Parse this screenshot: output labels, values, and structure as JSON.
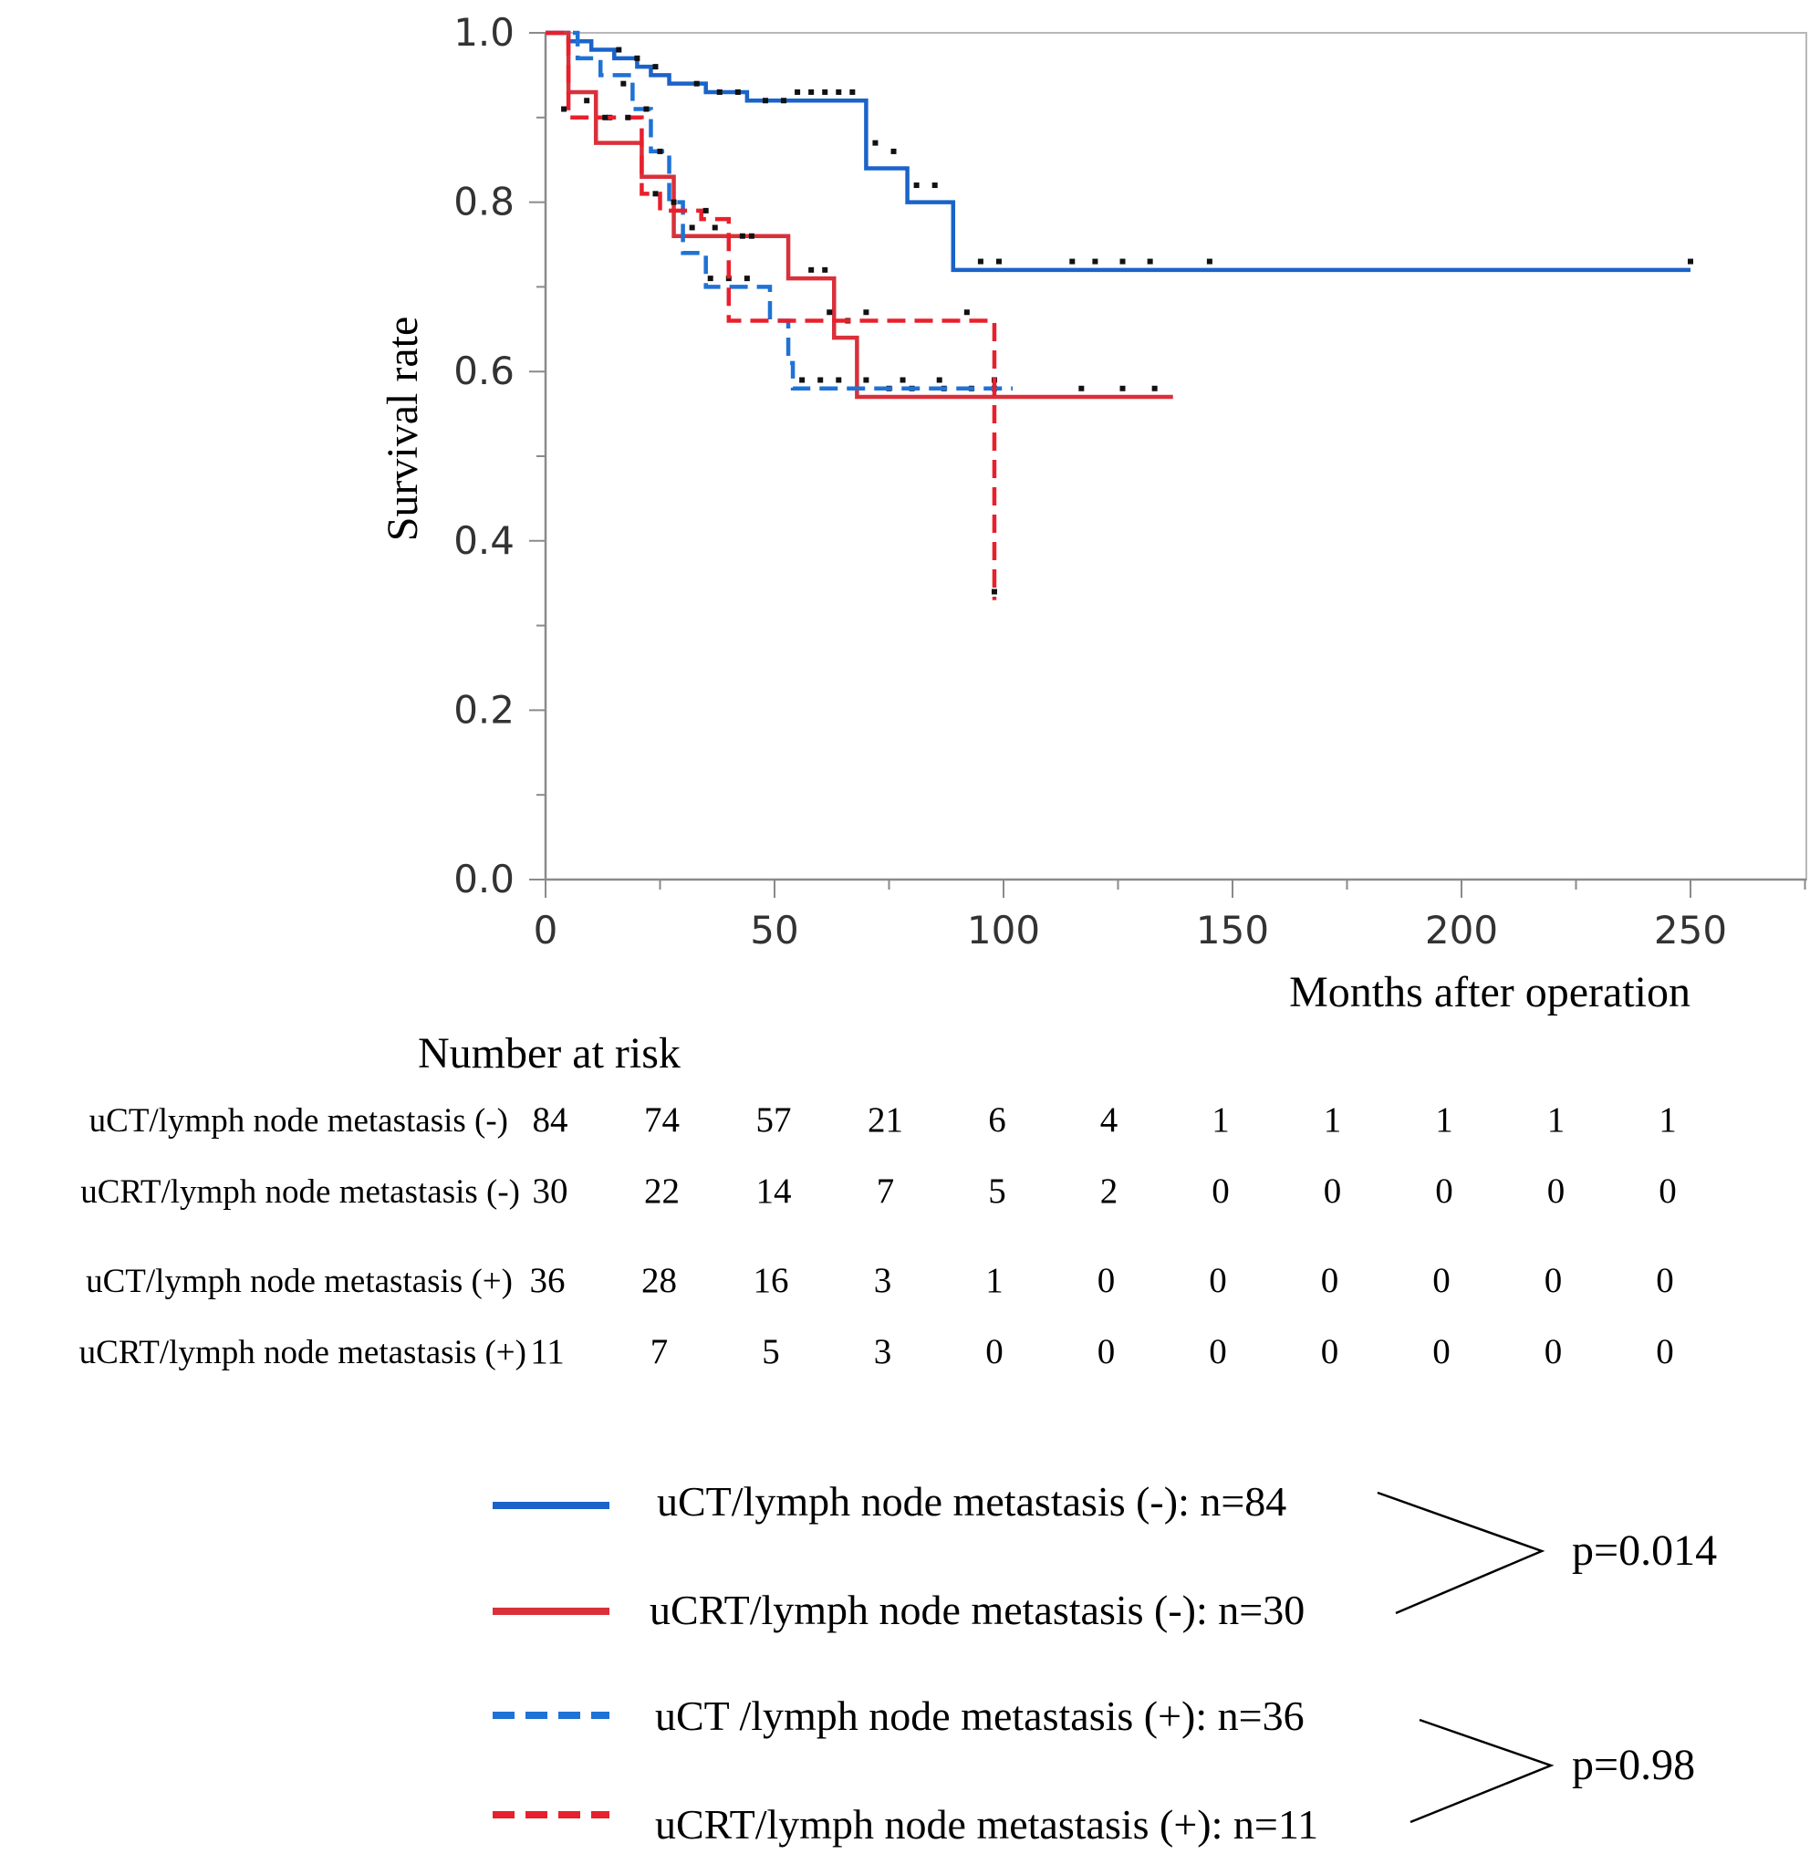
{
  "chart_data": {
    "type": "line",
    "subtype": "kaplan-meier",
    "title": "",
    "xlabel": "Months after operation",
    "ylabel": "Survival rate",
    "xlim": [
      0,
      275
    ],
    "ylim": [
      0,
      1.0
    ],
    "xticks": [
      0,
      50,
      100,
      150,
      200,
      250
    ],
    "xtick_labels": [
      "0",
      "50",
      "100",
      "150",
      "200",
      "250"
    ],
    "yticks": [
      0,
      0.2,
      0.4,
      0.6,
      0.8,
      1.0
    ],
    "ytick_labels": [
      "0.0",
      "0.2",
      "0.4",
      "0.6",
      "0.8",
      "1.0"
    ],
    "grid": false,
    "series": [
      {
        "name": "uCT/lymph node metastasis (-): n=84",
        "color": "#1a63c9",
        "dash": "solid",
        "steps": [
          [
            0,
            1.0
          ],
          [
            5,
            0.99
          ],
          [
            10,
            0.98
          ],
          [
            15,
            0.97
          ],
          [
            20,
            0.96
          ],
          [
            23,
            0.95
          ],
          [
            27,
            0.94
          ],
          [
            35,
            0.93
          ],
          [
            44,
            0.92
          ],
          [
            70,
            0.84
          ],
          [
            79,
            0.8
          ],
          [
            89,
            0.72
          ],
          [
            250,
            0.72
          ]
        ],
        "censors": [
          [
            16,
            0.98
          ],
          [
            20,
            0.97
          ],
          [
            24,
            0.96
          ],
          [
            33,
            0.94
          ],
          [
            38,
            0.93
          ],
          [
            42,
            0.93
          ],
          [
            48,
            0.92
          ],
          [
            52,
            0.92
          ],
          [
            55,
            0.93
          ],
          [
            58,
            0.93
          ],
          [
            61,
            0.93
          ],
          [
            64,
            0.93
          ],
          [
            67,
            0.93
          ],
          [
            72,
            0.87
          ],
          [
            76,
            0.86
          ],
          [
            81,
            0.82
          ],
          [
            85,
            0.82
          ],
          [
            95,
            0.73
          ],
          [
            99,
            0.73
          ],
          [
            115,
            0.73
          ],
          [
            120,
            0.73
          ],
          [
            126,
            0.73
          ],
          [
            132,
            0.73
          ],
          [
            145,
            0.73
          ],
          [
            250,
            0.73
          ]
        ]
      },
      {
        "name": "uCRT/lymph node metastasis (-): n=30",
        "color": "#d9303a",
        "dash": "solid",
        "steps": [
          [
            0,
            1.0
          ],
          [
            5,
            0.93
          ],
          [
            11,
            0.87
          ],
          [
            21,
            0.83
          ],
          [
            28,
            0.76
          ],
          [
            53,
            0.71
          ],
          [
            63,
            0.64
          ],
          [
            68,
            0.57
          ],
          [
            137,
            0.57
          ]
        ],
        "censors": [
          [
            9,
            0.92
          ],
          [
            14,
            0.9
          ],
          [
            32,
            0.77
          ],
          [
            37,
            0.77
          ],
          [
            43,
            0.76
          ],
          [
            58,
            0.72
          ],
          [
            61,
            0.72
          ],
          [
            66,
            0.66
          ],
          [
            75,
            0.58
          ],
          [
            80,
            0.58
          ],
          [
            87,
            0.58
          ],
          [
            93,
            0.58
          ],
          [
            98,
            0.58
          ],
          [
            117,
            0.58
          ],
          [
            126,
            0.58
          ],
          [
            133,
            0.58
          ]
        ]
      },
      {
        "name": "uCT /lymph node metastasis (+): n=36",
        "color": "#1f72d6",
        "dash": "dashed",
        "steps": [
          [
            0,
            1.0
          ],
          [
            7,
            0.97
          ],
          [
            12,
            0.95
          ],
          [
            19,
            0.91
          ],
          [
            23,
            0.86
          ],
          [
            27,
            0.8
          ],
          [
            30,
            0.74
          ],
          [
            35,
            0.7
          ],
          [
            49,
            0.66
          ],
          [
            53,
            0.61
          ],
          [
            54,
            0.58
          ],
          [
            102,
            0.58
          ]
        ],
        "censors": [
          [
            17,
            0.94
          ],
          [
            22,
            0.91
          ],
          [
            25,
            0.86
          ],
          [
            28,
            0.8
          ],
          [
            36,
            0.71
          ],
          [
            40,
            0.71
          ],
          [
            44,
            0.71
          ],
          [
            56,
            0.59
          ],
          [
            60,
            0.59
          ],
          [
            64,
            0.59
          ],
          [
            70,
            0.59
          ],
          [
            78,
            0.59
          ],
          [
            86,
            0.59
          ],
          [
            98,
            0.59
          ]
        ]
      },
      {
        "name": "uCRT/lymph node metastasis (+): n=11",
        "color": "#e8202c",
        "dash": "dashed",
        "steps": [
          [
            0,
            1.0
          ],
          [
            5,
            0.9
          ],
          [
            21,
            0.81
          ],
          [
            25,
            0.79
          ],
          [
            34,
            0.78
          ],
          [
            40,
            0.66
          ],
          [
            98,
            0.33
          ]
        ],
        "censors": [
          [
            4,
            0.91
          ],
          [
            13,
            0.9
          ],
          [
            18,
            0.9
          ],
          [
            24,
            0.81
          ],
          [
            35,
            0.79
          ],
          [
            45,
            0.76
          ],
          [
            62,
            0.67
          ],
          [
            70,
            0.67
          ],
          [
            92,
            0.67
          ],
          [
            98,
            0.34
          ]
        ]
      }
    ]
  },
  "risk_table": {
    "title": "Number at risk",
    "rows": [
      {
        "label": "uCT/lymph node metastasis (-)",
        "values": [
          "84",
          "74",
          "57",
          "21",
          "6",
          "4",
          "1",
          "1",
          "1",
          "1",
          "1"
        ]
      },
      {
        "label": "uCRT/lymph node metastasis (-)",
        "values": [
          "30",
          "22",
          "14",
          "7",
          "5",
          "2",
          "0",
          "0",
          "0",
          "0",
          "0"
        ]
      },
      {
        "label": "uCT/lymph node metastasis (+)",
        "values": [
          "36",
          "28",
          "16",
          "3",
          "1",
          "0",
          "0",
          "0",
          "0",
          "0",
          "0"
        ]
      },
      {
        "label": "uCRT/lymph node metastasis (+)",
        "values": [
          "11",
          "7",
          "5",
          "3",
          "0",
          "0",
          "0",
          "0",
          "0",
          "0",
          "0"
        ]
      }
    ]
  },
  "legend": {
    "items": [
      {
        "label": "uCT/lymph node metastasis (-): n=84"
      },
      {
        "label": "uCRT/lymph node metastasis (-): n=30"
      },
      {
        "label": "uCT /lymph node metastasis (+): n=36"
      },
      {
        "label": "uCRT/lymph node metastasis (+): n=11"
      }
    ],
    "comparisons": [
      {
        "p_value": "p=0.014"
      },
      {
        "p_value": "p=0.98"
      }
    ]
  }
}
